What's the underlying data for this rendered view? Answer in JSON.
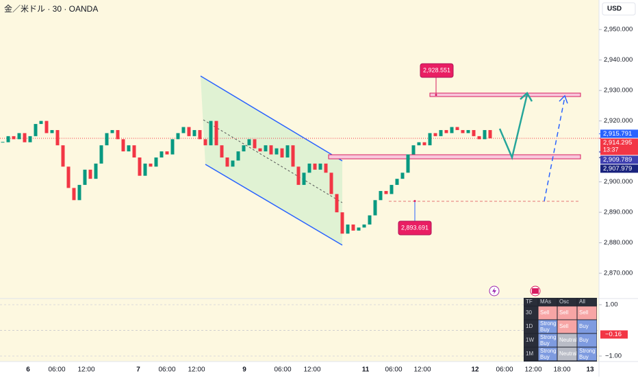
{
  "header": {
    "title": "金／米ドル · 30 · OANDA",
    "currency": "USD"
  },
  "chart_data": {
    "type": "candlestick",
    "values": [
      2913,
      2915,
      2914,
      2916,
      2913,
      2915,
      2919,
      2920,
      2916,
      2917,
      2912,
      2905,
      2898,
      2894,
      2899,
      2904,
      2901,
      2906,
      2912,
      2916,
      2917,
      2914,
      2910,
      2912,
      2908,
      2902,
      2906,
      2905,
      2908,
      2910,
      2909,
      2914,
      2916,
      2918,
      2915,
      2917,
      2914,
      2912,
      2920,
      2912,
      2908,
      2905,
      2907,
      2910,
      2912,
      2914,
      2911,
      2910,
      2912,
      2909,
      2911,
      2908,
      2912,
      2905,
      2899,
      2903,
      2906,
      2904,
      2906,
      2903,
      2896,
      2890,
      2883,
      2886,
      2884,
      2885,
      2886,
      2889,
      2894,
      2897,
      2896,
      2899,
      2901,
      2903,
      2909,
      2912,
      2913,
      2912,
      2916,
      2915,
      2917,
      2916,
      2918,
      2917,
      2916,
      2917,
      2915,
      2914,
      2917,
      2914.295
    ],
    "up_color": "#089981",
    "down_color": "#f23645",
    "ylim": [
      2861.7,
      2959.7
    ],
    "yticks": [
      {
        "value": 2950,
        "label": "2,950.000"
      },
      {
        "value": 2940,
        "label": "2,940.000"
      },
      {
        "value": 2930,
        "label": "2,930.000"
      },
      {
        "value": 2920,
        "label": "2,920.000"
      },
      {
        "value": 2910,
        "label": "2,910.000"
      },
      {
        "value": 2900,
        "label": "2,900.000"
      },
      {
        "value": 2890,
        "label": "2,890.000"
      },
      {
        "value": 2880,
        "label": "2,880.000"
      },
      {
        "value": 2870,
        "label": "2,870.000"
      }
    ],
    "price_tags": [
      {
        "value": 2915.791,
        "label": "2,915.791",
        "color": "#2962ff"
      },
      {
        "value": 2914.295,
        "label": "2,914.295",
        "sublabel": "13:37",
        "color": "#f23645"
      },
      {
        "value": 2909.789,
        "label": "2,909.789",
        "color": "#3f3fb0"
      },
      {
        "value": 2907.979,
        "label": "2,907.979",
        "color": "#1a237e"
      }
    ],
    "annotations": [
      {
        "value": 2928.551,
        "label": "2,928.551"
      },
      {
        "value": 2893.691,
        "label": "2,893.691"
      }
    ],
    "time_labels": [
      "6",
      "06:00",
      "12:00",
      "7",
      "06:00",
      "12:00",
      "9",
      "06:00",
      "12:00",
      "11",
      "06:00",
      "12:00",
      "12",
      "06:00",
      "12:00",
      "18:00",
      "13"
    ],
    "oscillator": {
      "ylim": [
        -1.213,
        1.24
      ],
      "yticks": [
        {
          "value": 1,
          "label": "1.00"
        },
        {
          "value": -1,
          "label": "−1.00"
        }
      ],
      "current": {
        "value": -0.16,
        "label": "−0.16"
      }
    }
  },
  "table": {
    "header": [
      "TF",
      "MAs",
      "Osc",
      "All"
    ],
    "rows": [
      [
        "30",
        "Sell",
        "Sell",
        "Sell"
      ],
      [
        "1D",
        "Strong Buy",
        "Sell",
        "Buy"
      ],
      [
        "1W",
        "Strong Buy",
        "Neutral",
        "Buy"
      ],
      [
        "1M",
        "Strong Buy",
        "Neutral",
        "Strong Buy"
      ]
    ]
  }
}
